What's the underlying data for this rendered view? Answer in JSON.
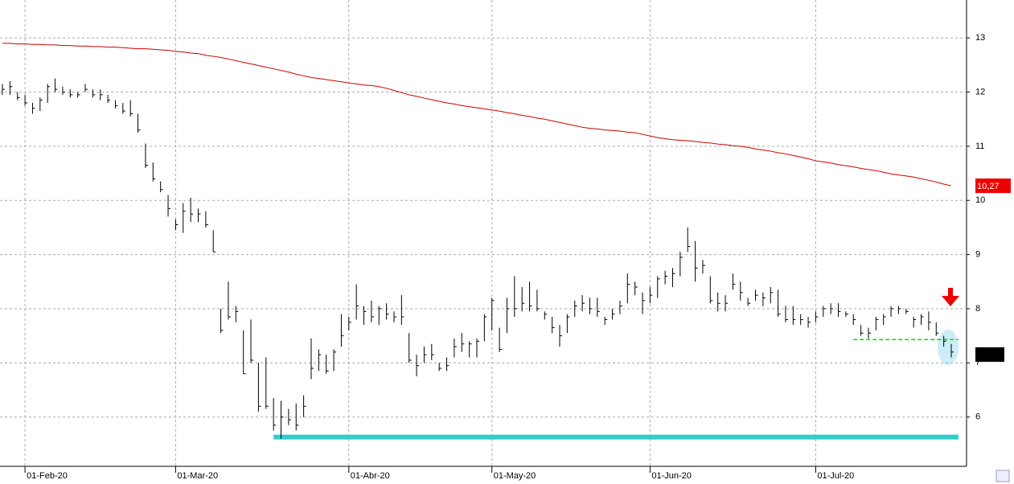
{
  "chart_data": {
    "type": "ohlc",
    "categories": [
      null,
      null,
      null,
      "01-Feb-20",
      null,
      null,
      null,
      null,
      null,
      null,
      null,
      null,
      null,
      null,
      null,
      null,
      null,
      null,
      null,
      null,
      null,
      null,
      null,
      "01-Mar-20",
      null,
      null,
      null,
      null,
      null,
      null,
      null,
      null,
      null,
      null,
      null,
      null,
      null,
      null,
      null,
      null,
      null,
      null,
      null,
      null,
      null,
      null,
      "01-Abr-20",
      null,
      null,
      null,
      null,
      null,
      null,
      null,
      null,
      null,
      null,
      null,
      null,
      null,
      null,
      null,
      null,
      null,
      null,
      "01-May-20",
      null,
      null,
      null,
      null,
      null,
      null,
      null,
      null,
      null,
      null,
      null,
      null,
      null,
      null,
      null,
      null,
      null,
      null,
      null,
      null,
      "01-Jun-20",
      null,
      null,
      null,
      null,
      null,
      null,
      null,
      null,
      null,
      null,
      null,
      null,
      null,
      null,
      null,
      null,
      null,
      null,
      null,
      null,
      null,
      "01-Jul-20",
      null,
      null,
      null,
      null,
      null,
      null,
      null,
      null,
      null,
      null,
      null,
      null,
      null,
      null,
      null,
      null,
      null,
      null
    ],
    "high": [
      12.15,
      12.2,
      12.0,
      11.95,
      11.8,
      11.9,
      12.15,
      12.25,
      12.1,
      12.05,
      12.0,
      12.15,
      12.05,
      12.05,
      11.95,
      11.85,
      11.8,
      11.85,
      11.6,
      11.05,
      10.7,
      10.35,
      10.1,
      9.65,
      9.95,
      10.05,
      9.85,
      9.8,
      9.45,
      8.0,
      8.5,
      8.05,
      7.6,
      7.8,
      7.0,
      7.1,
      6.35,
      6.3,
      6.15,
      6.25,
      6.4,
      7.45,
      7.25,
      7.15,
      7.25,
      7.9,
      7.85,
      8.45,
      8.05,
      8.15,
      8.05,
      8.1,
      7.95,
      8.25,
      7.55,
      7.15,
      7.3,
      7.35,
      7.0,
      7.1,
      7.45,
      7.55,
      7.4,
      7.45,
      7.9,
      8.2,
      7.65,
      8.2,
      8.6,
      8.4,
      8.5,
      8.35,
      7.95,
      7.85,
      7.7,
      7.9,
      8.15,
      8.25,
      8.2,
      8.2,
      7.85,
      8.0,
      8.15,
      8.65,
      8.5,
      8.3,
      8.4,
      8.6,
      8.7,
      8.75,
      9.05,
      9.5,
      9.25,
      8.9,
      8.6,
      8.3,
      8.25,
      8.65,
      8.5,
      8.2,
      8.35,
      8.3,
      8.4,
      8.35,
      8.05,
      8.05,
      7.9,
      7.85,
      7.95,
      8.05,
      8.1,
      8.1,
      7.95,
      7.9,
      7.7,
      7.65,
      7.85,
      7.9,
      8.05,
      8.05,
      8.0,
      7.85,
      7.9,
      7.95,
      7.75,
      7.5,
      7.35
    ],
    "low": [
      11.95,
      11.95,
      11.85,
      11.75,
      11.6,
      11.65,
      11.8,
      12.0,
      11.95,
      11.9,
      11.9,
      12.0,
      11.9,
      11.85,
      11.8,
      11.7,
      11.6,
      11.55,
      11.25,
      10.6,
      10.35,
      10.15,
      9.7,
      9.45,
      9.4,
      9.6,
      9.6,
      9.5,
      9.05,
      7.55,
      7.8,
      7.75,
      6.8,
      7.0,
      6.1,
      6.15,
      5.75,
      5.6,
      5.85,
      5.75,
      6.0,
      6.7,
      6.85,
      6.8,
      6.85,
      7.3,
      7.6,
      7.8,
      7.7,
      7.75,
      7.7,
      7.8,
      7.75,
      7.7,
      7.0,
      6.75,
      7.0,
      7.05,
      6.85,
      6.85,
      7.1,
      7.2,
      7.1,
      7.1,
      7.4,
      7.6,
      7.2,
      7.55,
      7.85,
      7.95,
      7.95,
      7.95,
      7.8,
      7.55,
      7.3,
      7.55,
      7.85,
      7.95,
      7.9,
      7.85,
      7.7,
      7.8,
      7.9,
      8.1,
      8.25,
      7.9,
      8.1,
      8.2,
      8.45,
      8.4,
      8.6,
      9.05,
      8.5,
      8.65,
      8.1,
      7.95,
      7.95,
      8.35,
      8.15,
      8.05,
      8.15,
      8.05,
      8.1,
      7.85,
      7.75,
      7.7,
      7.7,
      7.65,
      7.75,
      7.85,
      7.9,
      7.85,
      7.85,
      7.7,
      7.5,
      7.45,
      7.6,
      7.7,
      7.85,
      7.9,
      7.9,
      7.65,
      7.7,
      7.6,
      7.5,
      7.3,
      7.1
    ],
    "close": [
      12.05,
      12.1,
      11.9,
      11.8,
      11.7,
      11.85,
      12.1,
      12.05,
      12.0,
      11.95,
      11.95,
      12.05,
      11.95,
      11.95,
      11.85,
      11.75,
      11.65,
      11.6,
      11.3,
      10.65,
      10.4,
      10.2,
      9.85,
      9.55,
      9.8,
      9.75,
      9.75,
      9.55,
      9.05,
      7.6,
      7.85,
      7.95,
      6.8,
      7.05,
      6.2,
      6.2,
      5.85,
      6.0,
      5.95,
      5.85,
      6.2,
      6.9,
      7.15,
      6.85,
      7.2,
      7.5,
      7.75,
      8.05,
      7.95,
      7.85,
      8.0,
      7.9,
      7.85,
      7.85,
      7.05,
      6.95,
      7.15,
      7.15,
      6.9,
      6.95,
      7.3,
      7.35,
      7.35,
      7.4,
      7.85,
      8.15,
      7.25,
      8.0,
      8.0,
      8.1,
      8.05,
      8.0,
      7.9,
      7.65,
      7.5,
      7.85,
      8.05,
      8.1,
      8.0,
      7.95,
      7.8,
      7.9,
      8.05,
      8.45,
      8.4,
      8.15,
      8.25,
      8.55,
      8.6,
      8.65,
      8.95,
      9.15,
      8.75,
      8.8,
      8.15,
      8.1,
      8.1,
      8.45,
      8.3,
      8.1,
      8.25,
      8.2,
      8.3,
      7.9,
      7.8,
      7.8,
      7.8,
      7.75,
      7.85,
      8.0,
      8.0,
      7.95,
      7.9,
      7.8,
      7.55,
      7.55,
      7.8,
      7.85,
      8.0,
      8.0,
      7.95,
      7.8,
      7.85,
      7.75,
      7.55,
      7.4,
      7.2
    ],
    "ma": [
      12.9,
      12.9,
      12.89,
      12.89,
      12.88,
      12.88,
      12.87,
      12.87,
      12.86,
      12.86,
      12.85,
      12.85,
      12.84,
      12.84,
      12.83,
      12.83,
      12.82,
      12.81,
      12.8,
      12.8,
      12.79,
      12.78,
      12.77,
      12.75,
      12.74,
      12.72,
      12.71,
      12.68,
      12.66,
      12.64,
      12.61,
      12.58,
      12.55,
      12.52,
      12.49,
      12.46,
      12.43,
      12.4,
      12.37,
      12.33,
      12.3,
      12.27,
      12.25,
      12.23,
      12.21,
      12.19,
      12.17,
      12.15,
      12.13,
      12.12,
      12.1,
      12.07,
      12.03,
      11.99,
      11.95,
      11.92,
      11.89,
      11.86,
      11.83,
      11.8,
      11.78,
      11.75,
      11.73,
      11.71,
      11.69,
      11.67,
      11.65,
      11.62,
      11.6,
      11.57,
      11.55,
      11.52,
      11.5,
      11.47,
      11.44,
      11.41,
      11.38,
      11.35,
      11.33,
      11.32,
      11.3,
      11.29,
      11.28,
      11.26,
      11.25,
      11.22,
      11.19,
      11.16,
      11.14,
      11.12,
      11.11,
      11.1,
      11.09,
      11.07,
      11.06,
      11.04,
      11.03,
      11.01,
      11.0,
      10.98,
      10.95,
      10.93,
      10.91,
      10.88,
      10.86,
      10.83,
      10.8,
      10.77,
      10.73,
      10.71,
      10.69,
      10.66,
      10.64,
      10.62,
      10.59,
      10.57,
      10.55,
      10.52,
      10.49,
      10.47,
      10.45,
      10.43,
      10.4,
      10.37,
      10.34,
      10.3,
      10.27
    ],
    "ma_label": {
      "value": 10.27,
      "label": "10,27"
    },
    "ma_color": "#cc0000",
    "bar_color": "#000000",
    "hlines": [
      {
        "value": 5.63,
        "from": 36,
        "color": "#33cccc",
        "style": "solid"
      },
      {
        "value": 7.43,
        "from": 113,
        "color": "#00dd00",
        "style": "dashed"
      }
    ],
    "ylim": [
      5.09,
      13.7
    ],
    "yticks": [
      6,
      7,
      8,
      9,
      10,
      11,
      12,
      13
    ],
    "grid": true
  }
}
